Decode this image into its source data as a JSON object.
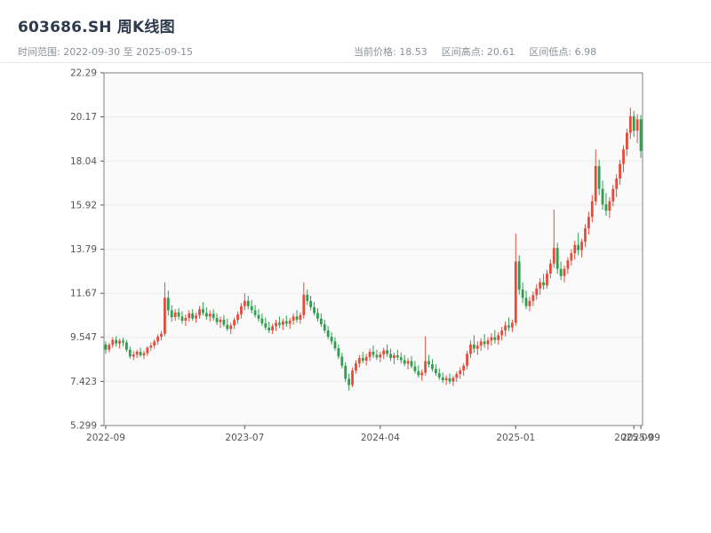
{
  "header": {
    "title": "603686.SH 周K线图",
    "time_range_label": "时间范围: 2022-09-30 至 2025-09-15",
    "current_price_label": "当前价格: 18.53",
    "range_high_label": "区间高点: 20.61",
    "range_low_label": "区间低点: 6.98"
  },
  "chart_data": {
    "type": "candlestick",
    "title": "603686.SH 周K线图",
    "symbol": "603686.SH",
    "period": "weekly",
    "time_range": [
      "2022-09-30",
      "2025-09-15"
    ],
    "current_price": 18.53,
    "range_high": 20.61,
    "range_low": 6.98,
    "ylim": [
      5.299,
      22.29
    ],
    "y_ticks": [
      "22.29",
      "20.17",
      "18.04",
      "15.92",
      "13.79",
      "11.67",
      "9.547",
      "7.423",
      "5.299"
    ],
    "x_ticks": [
      {
        "label": "2022-09",
        "i": 0
      },
      {
        "label": "2023-07",
        "i": 40
      },
      {
        "label": "2024-04",
        "i": 79
      },
      {
        "label": "2025-01",
        "i": 118
      },
      {
        "label": "2025-09",
        "i": 152
      },
      {
        "label": "2025-09",
        "i": 154
      }
    ],
    "up_color": "#e64c3c",
    "down_color": "#2f9e4f",
    "plot_bg": "#fafafa",
    "grid": true,
    "grid_color": "#ececec",
    "axis_color": "#808080",
    "tick_label_color": "#555555",
    "candles": [
      [
        "2022-09-30",
        9.2,
        9.35,
        8.75,
        8.95
      ],
      [
        "2022-10-07",
        8.95,
        9.28,
        8.82,
        9.18
      ],
      [
        "2022-10-14",
        9.18,
        9.55,
        9.05,
        9.42
      ],
      [
        "2022-10-21",
        9.42,
        9.6,
        9.1,
        9.25
      ],
      [
        "2022-10-28",
        9.25,
        9.48,
        9.0,
        9.38
      ],
      [
        "2022-11-04",
        9.38,
        9.52,
        9.12,
        9.3
      ],
      [
        "2022-11-11",
        9.3,
        9.42,
        8.85,
        8.95
      ],
      [
        "2022-11-18",
        8.95,
        9.1,
        8.52,
        8.62
      ],
      [
        "2022-11-25",
        8.62,
        8.88,
        8.45,
        8.72
      ],
      [
        "2022-12-02",
        8.72,
        8.95,
        8.55,
        8.85
      ],
      [
        "2022-12-09",
        8.85,
        9.05,
        8.6,
        8.68
      ],
      [
        "2022-12-16",
        8.68,
        8.9,
        8.5,
        8.78
      ],
      [
        "2022-12-23",
        8.78,
        9.12,
        8.65,
        9.05
      ],
      [
        "2022-12-30",
        9.05,
        9.3,
        8.9,
        9.15
      ],
      [
        "2023-01-06",
        9.15,
        9.45,
        9.0,
        9.35
      ],
      [
        "2023-01-13",
        9.35,
        9.7,
        9.2,
        9.58
      ],
      [
        "2023-01-20",
        9.58,
        9.85,
        9.4,
        9.72
      ],
      [
        "2023-01-27",
        9.72,
        12.2,
        9.6,
        11.45
      ],
      [
        "2023-02-03",
        11.45,
        11.8,
        10.6,
        10.85
      ],
      [
        "2023-02-10",
        10.85,
        11.1,
        10.3,
        10.52
      ],
      [
        "2023-02-17",
        10.52,
        10.9,
        10.35,
        10.75
      ],
      [
        "2023-02-24",
        10.75,
        10.95,
        10.4,
        10.55
      ],
      [
        "2023-03-03",
        10.55,
        10.8,
        10.2,
        10.35
      ],
      [
        "2023-03-10",
        10.35,
        10.65,
        10.1,
        10.48
      ],
      [
        "2023-03-17",
        10.48,
        10.85,
        10.3,
        10.7
      ],
      [
        "2023-03-24",
        10.7,
        10.9,
        10.35,
        10.45
      ],
      [
        "2023-03-31",
        10.45,
        10.75,
        10.25,
        10.6
      ],
      [
        "2023-04-07",
        10.6,
        11.05,
        10.45,
        10.9
      ],
      [
        "2023-04-14",
        10.9,
        11.25,
        10.6,
        10.72
      ],
      [
        "2023-04-21",
        10.72,
        11.0,
        10.4,
        10.55
      ],
      [
        "2023-04-28",
        10.55,
        10.85,
        10.3,
        10.68
      ],
      [
        "2023-05-05",
        10.68,
        10.9,
        10.35,
        10.48
      ],
      [
        "2023-05-12",
        10.48,
        10.7,
        10.15,
        10.28
      ],
      [
        "2023-05-19",
        10.28,
        10.55,
        10.0,
        10.4
      ],
      [
        "2023-05-26",
        10.4,
        10.62,
        10.05,
        10.15
      ],
      [
        "2023-06-02",
        10.15,
        10.45,
        9.85,
        9.95
      ],
      [
        "2023-06-09",
        9.95,
        10.25,
        9.7,
        10.12
      ],
      [
        "2023-06-16",
        10.12,
        10.5,
        9.95,
        10.38
      ],
      [
        "2023-06-23",
        10.38,
        10.8,
        10.2,
        10.65
      ],
      [
        "2023-06-30",
        10.65,
        11.2,
        10.45,
        11.05
      ],
      [
        "2023-07-07",
        11.05,
        11.67,
        10.85,
        11.3
      ],
      [
        "2023-07-14",
        11.3,
        11.55,
        10.9,
        11.05
      ],
      [
        "2023-07-21",
        11.05,
        11.35,
        10.7,
        10.85
      ],
      [
        "2023-07-28",
        10.85,
        11.1,
        10.5,
        10.62
      ],
      [
        "2023-08-04",
        10.62,
        10.9,
        10.3,
        10.45
      ],
      [
        "2023-08-11",
        10.45,
        10.7,
        10.1,
        10.22
      ],
      [
        "2023-08-18",
        10.22,
        10.5,
        9.9,
        10.02
      ],
      [
        "2023-08-25",
        10.02,
        10.3,
        9.75,
        9.88
      ],
      [
        "2023-09-01",
        9.88,
        10.2,
        9.7,
        10.08
      ],
      [
        "2023-09-08",
        10.08,
        10.4,
        9.85,
        10.25
      ],
      [
        "2023-09-15",
        10.25,
        10.55,
        10.0,
        10.15
      ],
      [
        "2023-09-22",
        10.15,
        10.45,
        9.9,
        10.32
      ],
      [
        "2023-09-29",
        10.32,
        10.6,
        10.05,
        10.2
      ],
      [
        "2023-10-06",
        10.2,
        10.48,
        9.95,
        10.35
      ],
      [
        "2023-10-13",
        10.35,
        10.7,
        10.15,
        10.55
      ],
      [
        "2023-10-20",
        10.55,
        10.85,
        10.25,
        10.4
      ],
      [
        "2023-10-27",
        10.4,
        10.75,
        10.2,
        10.62
      ],
      [
        "2023-11-03",
        10.62,
        12.2,
        10.45,
        11.6
      ],
      [
        "2023-11-10",
        11.6,
        11.85,
        11.1,
        11.3
      ],
      [
        "2023-11-17",
        11.3,
        11.55,
        10.85,
        11.0
      ],
      [
        "2023-11-24",
        11.0,
        11.25,
        10.6,
        10.72
      ],
      [
        "2023-12-01",
        10.72,
        10.95,
        10.3,
        10.45
      ],
      [
        "2023-12-08",
        10.45,
        10.7,
        10.05,
        10.18
      ],
      [
        "2023-12-15",
        10.18,
        10.4,
        9.75,
        9.88
      ],
      [
        "2023-12-22",
        9.88,
        10.1,
        9.45,
        9.58
      ],
      [
        "2023-12-29",
        9.58,
        9.8,
        9.2,
        9.35
      ],
      [
        "2024-01-05",
        9.35,
        9.55,
        8.9,
        9.02
      ],
      [
        "2024-01-12",
        9.02,
        9.2,
        8.5,
        8.62
      ],
      [
        "2024-01-19",
        8.62,
        8.8,
        8.05,
        8.18
      ],
      [
        "2024-01-26",
        8.18,
        8.35,
        7.4,
        7.55
      ],
      [
        "2024-02-02",
        7.55,
        7.8,
        6.98,
        7.25
      ],
      [
        "2024-02-09",
        7.25,
        8.1,
        7.15,
        7.95
      ],
      [
        "2024-02-16",
        7.95,
        8.45,
        7.8,
        8.3
      ],
      [
        "2024-02-23",
        8.3,
        8.7,
        8.1,
        8.55
      ],
      [
        "2024-03-01",
        8.55,
        8.85,
        8.3,
        8.42
      ],
      [
        "2024-03-08",
        8.42,
        8.75,
        8.2,
        8.6
      ],
      [
        "2024-03-15",
        8.6,
        9.0,
        8.4,
        8.85
      ],
      [
        "2024-03-22",
        8.85,
        9.15,
        8.55,
        8.7
      ],
      [
        "2024-03-29",
        8.7,
        8.95,
        8.45,
        8.58
      ],
      [
        "2024-04-05",
        8.58,
        8.85,
        8.35,
        8.72
      ],
      [
        "2024-04-12",
        8.72,
        9.05,
        8.5,
        8.92
      ],
      [
        "2024-04-19",
        8.92,
        9.2,
        8.6,
        8.75
      ],
      [
        "2024-04-26",
        8.75,
        9.0,
        8.4,
        8.55
      ],
      [
        "2024-05-03",
        8.55,
        8.8,
        8.25,
        8.68
      ],
      [
        "2024-05-10",
        8.68,
        8.95,
        8.45,
        8.58
      ],
      [
        "2024-05-17",
        8.58,
        8.82,
        8.3,
        8.45
      ],
      [
        "2024-05-24",
        8.45,
        8.7,
        8.15,
        8.28
      ],
      [
        "2024-05-31",
        8.28,
        8.55,
        8.0,
        8.4
      ],
      [
        "2024-06-07",
        8.4,
        8.65,
        8.05,
        8.15
      ],
      [
        "2024-06-14",
        8.15,
        8.4,
        7.8,
        7.92
      ],
      [
        "2024-06-21",
        7.92,
        8.2,
        7.6,
        7.72
      ],
      [
        "2024-06-28",
        7.72,
        8.0,
        7.45,
        7.85
      ],
      [
        "2024-07-05",
        7.85,
        9.6,
        7.7,
        8.4
      ],
      [
        "2024-07-12",
        8.4,
        8.7,
        8.1,
        8.25
      ],
      [
        "2024-07-19",
        8.25,
        8.5,
        7.9,
        8.02
      ],
      [
        "2024-07-26",
        8.02,
        8.25,
        7.7,
        7.82
      ],
      [
        "2024-08-02",
        7.82,
        8.05,
        7.5,
        7.62
      ],
      [
        "2024-08-09",
        7.62,
        7.85,
        7.35,
        7.48
      ],
      [
        "2024-08-16",
        7.48,
        7.72,
        7.25,
        7.58
      ],
      [
        "2024-08-23",
        7.58,
        7.8,
        7.3,
        7.42
      ],
      [
        "2024-08-30",
        7.42,
        7.7,
        7.2,
        7.6
      ],
      [
        "2024-09-06",
        7.6,
        7.9,
        7.4,
        7.78
      ],
      [
        "2024-09-13",
        7.78,
        8.1,
        7.55,
        7.95
      ],
      [
        "2024-09-20",
        7.95,
        8.3,
        7.7,
        8.18
      ],
      [
        "2024-09-27",
        8.18,
        8.9,
        8.0,
        8.75
      ],
      [
        "2024-10-04",
        8.75,
        9.4,
        8.55,
        9.2
      ],
      [
        "2024-10-11",
        9.2,
        9.65,
        8.8,
        9.0
      ],
      [
        "2024-10-18",
        9.0,
        9.35,
        8.7,
        9.15
      ],
      [
        "2024-10-25",
        9.15,
        9.5,
        8.9,
        9.35
      ],
      [
        "2024-11-01",
        9.35,
        9.7,
        9.05,
        9.22
      ],
      [
        "2024-11-08",
        9.22,
        9.55,
        8.95,
        9.4
      ],
      [
        "2024-11-15",
        9.4,
        9.75,
        9.15,
        9.55
      ],
      [
        "2024-11-22",
        9.55,
        9.9,
        9.25,
        9.42
      ],
      [
        "2024-11-29",
        9.42,
        9.8,
        9.2,
        9.65
      ],
      [
        "2024-12-06",
        9.65,
        10.05,
        9.4,
        9.88
      ],
      [
        "2024-12-13",
        9.88,
        10.3,
        9.6,
        10.12
      ],
      [
        "2024-12-20",
        10.12,
        10.5,
        9.85,
        10.02
      ],
      [
        "2024-12-27",
        10.02,
        10.4,
        9.8,
        10.25
      ],
      [
        "2025-01-03",
        10.25,
        14.55,
        10.1,
        13.2
      ],
      [
        "2025-01-10",
        13.2,
        13.5,
        11.6,
        11.85
      ],
      [
        "2025-01-17",
        11.85,
        12.2,
        11.2,
        11.45
      ],
      [
        "2025-01-24",
        11.45,
        11.8,
        10.9,
        11.05
      ],
      [
        "2025-01-31",
        11.05,
        11.5,
        10.8,
        11.3
      ],
      [
        "2025-02-07",
        11.3,
        11.75,
        11.05,
        11.58
      ],
      [
        "2025-02-14",
        11.58,
        12.1,
        11.35,
        11.9
      ],
      [
        "2025-02-21",
        11.9,
        12.4,
        11.6,
        12.2
      ],
      [
        "2025-02-28",
        12.2,
        12.6,
        11.85,
        12.05
      ],
      [
        "2025-03-07",
        12.05,
        12.8,
        11.9,
        12.62
      ],
      [
        "2025-03-14",
        12.62,
        13.3,
        12.4,
        13.1
      ],
      [
        "2025-03-21",
        13.1,
        15.7,
        12.9,
        13.85
      ],
      [
        "2025-03-28",
        13.85,
        14.1,
        12.6,
        12.85
      ],
      [
        "2025-04-04",
        12.85,
        13.2,
        12.3,
        12.5
      ],
      [
        "2025-04-11",
        12.5,
        13.0,
        12.2,
        12.85
      ],
      [
        "2025-04-18",
        12.85,
        13.4,
        12.6,
        13.25
      ],
      [
        "2025-04-25",
        13.25,
        13.8,
        13.0,
        13.6
      ],
      [
        "2025-05-02",
        13.6,
        14.2,
        13.3,
        14.0
      ],
      [
        "2025-05-09",
        14.0,
        14.6,
        13.5,
        13.75
      ],
      [
        "2025-05-16",
        13.75,
        14.3,
        13.4,
        14.15
      ],
      [
        "2025-05-23",
        14.15,
        15.0,
        13.9,
        14.8
      ],
      [
        "2025-05-30",
        14.8,
        15.6,
        14.5,
        15.35
      ],
      [
        "2025-06-06",
        15.35,
        16.4,
        15.1,
        16.1
      ],
      [
        "2025-06-13",
        16.1,
        18.6,
        15.9,
        17.8
      ],
      [
        "2025-06-20",
        17.8,
        18.1,
        16.4,
        16.7
      ],
      [
        "2025-06-27",
        16.7,
        17.1,
        15.7,
        15.95
      ],
      [
        "2025-07-04",
        15.95,
        16.5,
        15.4,
        15.65
      ],
      [
        "2025-07-11",
        15.65,
        16.3,
        15.3,
        16.1
      ],
      [
        "2025-07-18",
        16.1,
        16.9,
        15.85,
        16.7
      ],
      [
        "2025-07-25",
        16.7,
        17.4,
        16.3,
        17.2
      ],
      [
        "2025-08-01",
        17.2,
        18.1,
        16.9,
        17.9
      ],
      [
        "2025-08-08",
        17.9,
        18.8,
        17.5,
        18.6
      ],
      [
        "2025-08-15",
        18.6,
        19.6,
        18.3,
        19.4
      ],
      [
        "2025-08-22",
        19.4,
        20.61,
        19.1,
        20.2
      ],
      [
        "2025-08-29",
        20.2,
        20.45,
        19.2,
        19.5
      ],
      [
        "2025-09-05",
        19.5,
        20.3,
        18.9,
        20.05
      ],
      [
        "2025-09-15",
        20.05,
        20.25,
        18.2,
        18.53
      ]
    ]
  }
}
